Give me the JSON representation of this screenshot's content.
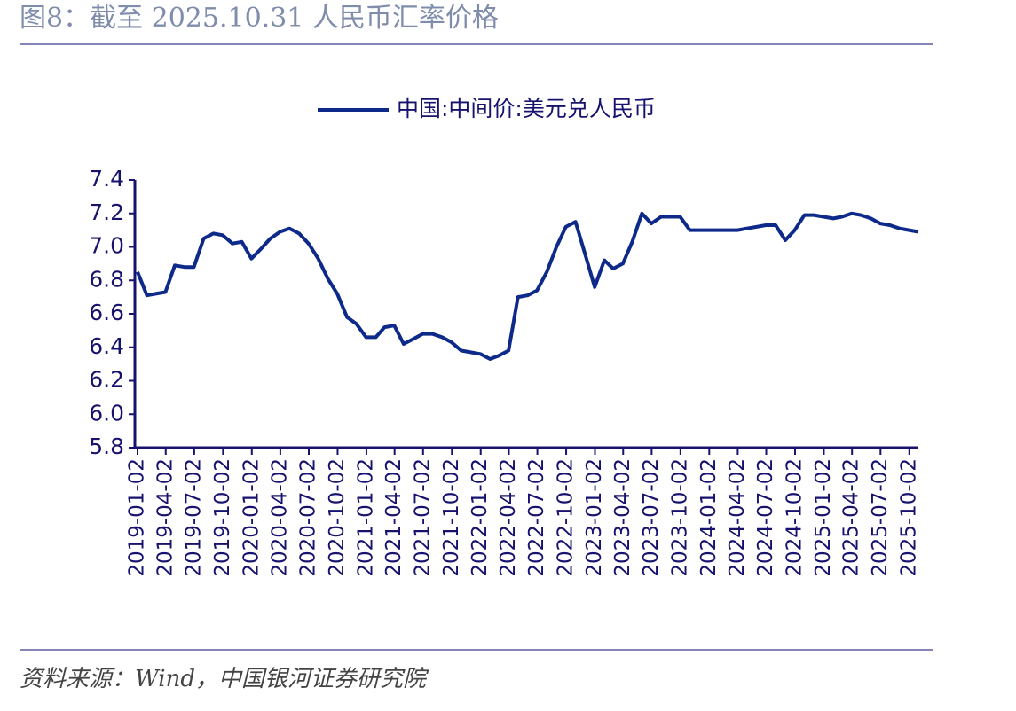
{
  "chart_data": {
    "type": "line",
    "title": "图8：截至 2025.10.31 人民币汇率价格",
    "source": "资料来源：Wind，中国银河证券研究院",
    "x": [
      "2019-01-02",
      "2019-02-01",
      "2019-03-01",
      "2019-04-01",
      "2019-05-01",
      "2019-06-01",
      "2019-07-01",
      "2019-08-01",
      "2019-09-01",
      "2019-10-01",
      "2019-11-01",
      "2019-12-01",
      "2020-01-01",
      "2020-02-01",
      "2020-03-01",
      "2020-04-01",
      "2020-05-01",
      "2020-06-01",
      "2020-07-01",
      "2020-08-01",
      "2020-09-01",
      "2020-10-01",
      "2020-11-01",
      "2020-12-01",
      "2021-01-01",
      "2021-02-01",
      "2021-03-01",
      "2021-04-01",
      "2021-05-01",
      "2021-06-01",
      "2021-07-01",
      "2021-08-01",
      "2021-09-01",
      "2021-10-01",
      "2021-11-01",
      "2021-12-01",
      "2022-01-01",
      "2022-02-01",
      "2022-03-01",
      "2022-04-01",
      "2022-05-01",
      "2022-06-01",
      "2022-07-01",
      "2022-08-01",
      "2022-09-01",
      "2022-10-01",
      "2022-11-01",
      "2022-12-01",
      "2023-01-01",
      "2023-02-01",
      "2023-03-01",
      "2023-04-01",
      "2023-05-01",
      "2023-06-01",
      "2023-07-01",
      "2023-08-01",
      "2023-09-01",
      "2023-10-01",
      "2023-11-01",
      "2023-12-01",
      "2024-01-01",
      "2024-02-01",
      "2024-03-01",
      "2024-04-01",
      "2024-05-01",
      "2024-06-01",
      "2024-07-01",
      "2024-08-01",
      "2024-09-01",
      "2024-10-01",
      "2024-11-01",
      "2024-12-01",
      "2025-01-01",
      "2025-02-01",
      "2025-03-01",
      "2025-04-01",
      "2025-05-01",
      "2025-06-01",
      "2025-07-01",
      "2025-08-01",
      "2025-09-01",
      "2025-10-01",
      "2025-10-31"
    ],
    "series": [
      {
        "name": "中国:中间价:美元兑人民币",
        "color": "#0d2a8a",
        "values": [
          6.85,
          6.71,
          6.72,
          6.73,
          6.89,
          6.88,
          6.88,
          7.05,
          7.08,
          7.07,
          7.02,
          7.03,
          6.93,
          6.99,
          7.05,
          7.09,
          7.11,
          7.08,
          7.02,
          6.93,
          6.81,
          6.72,
          6.58,
          6.54,
          6.46,
          6.46,
          6.52,
          6.53,
          6.42,
          6.45,
          6.48,
          6.48,
          6.46,
          6.43,
          6.38,
          6.37,
          6.36,
          6.33,
          6.35,
          6.38,
          6.7,
          6.71,
          6.74,
          6.85,
          7.0,
          7.12,
          7.15,
          6.96,
          6.76,
          6.92,
          6.87,
          6.9,
          7.03,
          7.2,
          7.14,
          7.18,
          7.18,
          7.18,
          7.1,
          7.1,
          7.1,
          7.1,
          7.1,
          7.1,
          7.11,
          7.12,
          7.13,
          7.13,
          7.04,
          7.1,
          7.19,
          7.19,
          7.18,
          7.17,
          7.18,
          7.2,
          7.19,
          7.17,
          7.14,
          7.13,
          7.11,
          7.1,
          7.09
        ]
      }
    ],
    "xlim": [
      "2019-01-02",
      "2025-10-31"
    ],
    "xticks": [
      "2019-01-02",
      "2019-04-02",
      "2019-07-02",
      "2019-10-02",
      "2020-01-02",
      "2020-04-02",
      "2020-07-02",
      "2020-10-02",
      "2021-01-02",
      "2021-04-02",
      "2021-07-02",
      "2021-10-02",
      "2022-01-02",
      "2022-04-02",
      "2022-07-02",
      "2022-10-02",
      "2023-01-02",
      "2023-04-02",
      "2023-07-02",
      "2023-10-02",
      "2024-01-02",
      "2024-04-02",
      "2024-07-02",
      "2024-10-02",
      "2025-01-02",
      "2025-04-02",
      "2025-07-02",
      "2025-10-02"
    ],
    "ylim": [
      5.8,
      7.4
    ],
    "yticks": [
      5.8,
      {
        "value": 6,
        "label": "6.0"
      },
      6.2,
      6.4,
      6.6,
      6.8,
      {
        "value": 7,
        "label": "7.0"
      },
      7.2,
      7.4
    ],
    "grid": false,
    "legend": "top"
  }
}
